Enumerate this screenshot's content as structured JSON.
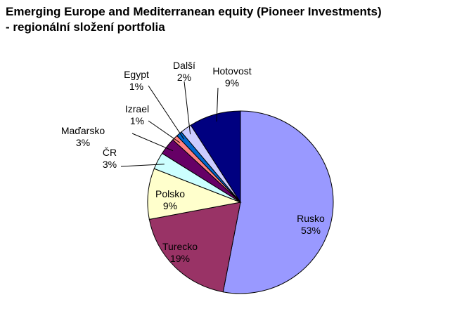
{
  "chart_data": {
    "type": "pie",
    "title": "Emerging Europe and Mediterranean equity (Pioneer Investments)",
    "subtitle": "- regionální složení portfolia",
    "slices": [
      {
        "label": "Rusko",
        "value": 53,
        "value_label": "53%",
        "color": "#9999FF"
      },
      {
        "label": "Turecko",
        "value": 19,
        "value_label": "19%",
        "color": "#993366"
      },
      {
        "label": "Polsko",
        "value": 9,
        "value_label": "9%",
        "color": "#FFFFCC"
      },
      {
        "label": "ČR",
        "value": 3,
        "value_label": "3%",
        "color": "#CCFFFF"
      },
      {
        "label": "Maďarsko",
        "value": 3,
        "value_label": "3%",
        "color": "#660066"
      },
      {
        "label": "Izrael",
        "value": 1,
        "value_label": "1%",
        "color": "#FF8080"
      },
      {
        "label": "Egypt",
        "value": 1,
        "value_label": "1%",
        "color": "#0066CC"
      },
      {
        "label": "Další",
        "value": 2,
        "value_label": "2%",
        "color": "#CCCCFF"
      },
      {
        "label": "Hotovost",
        "value": 9,
        "value_label": "9%",
        "color": "#000080"
      }
    ]
  }
}
